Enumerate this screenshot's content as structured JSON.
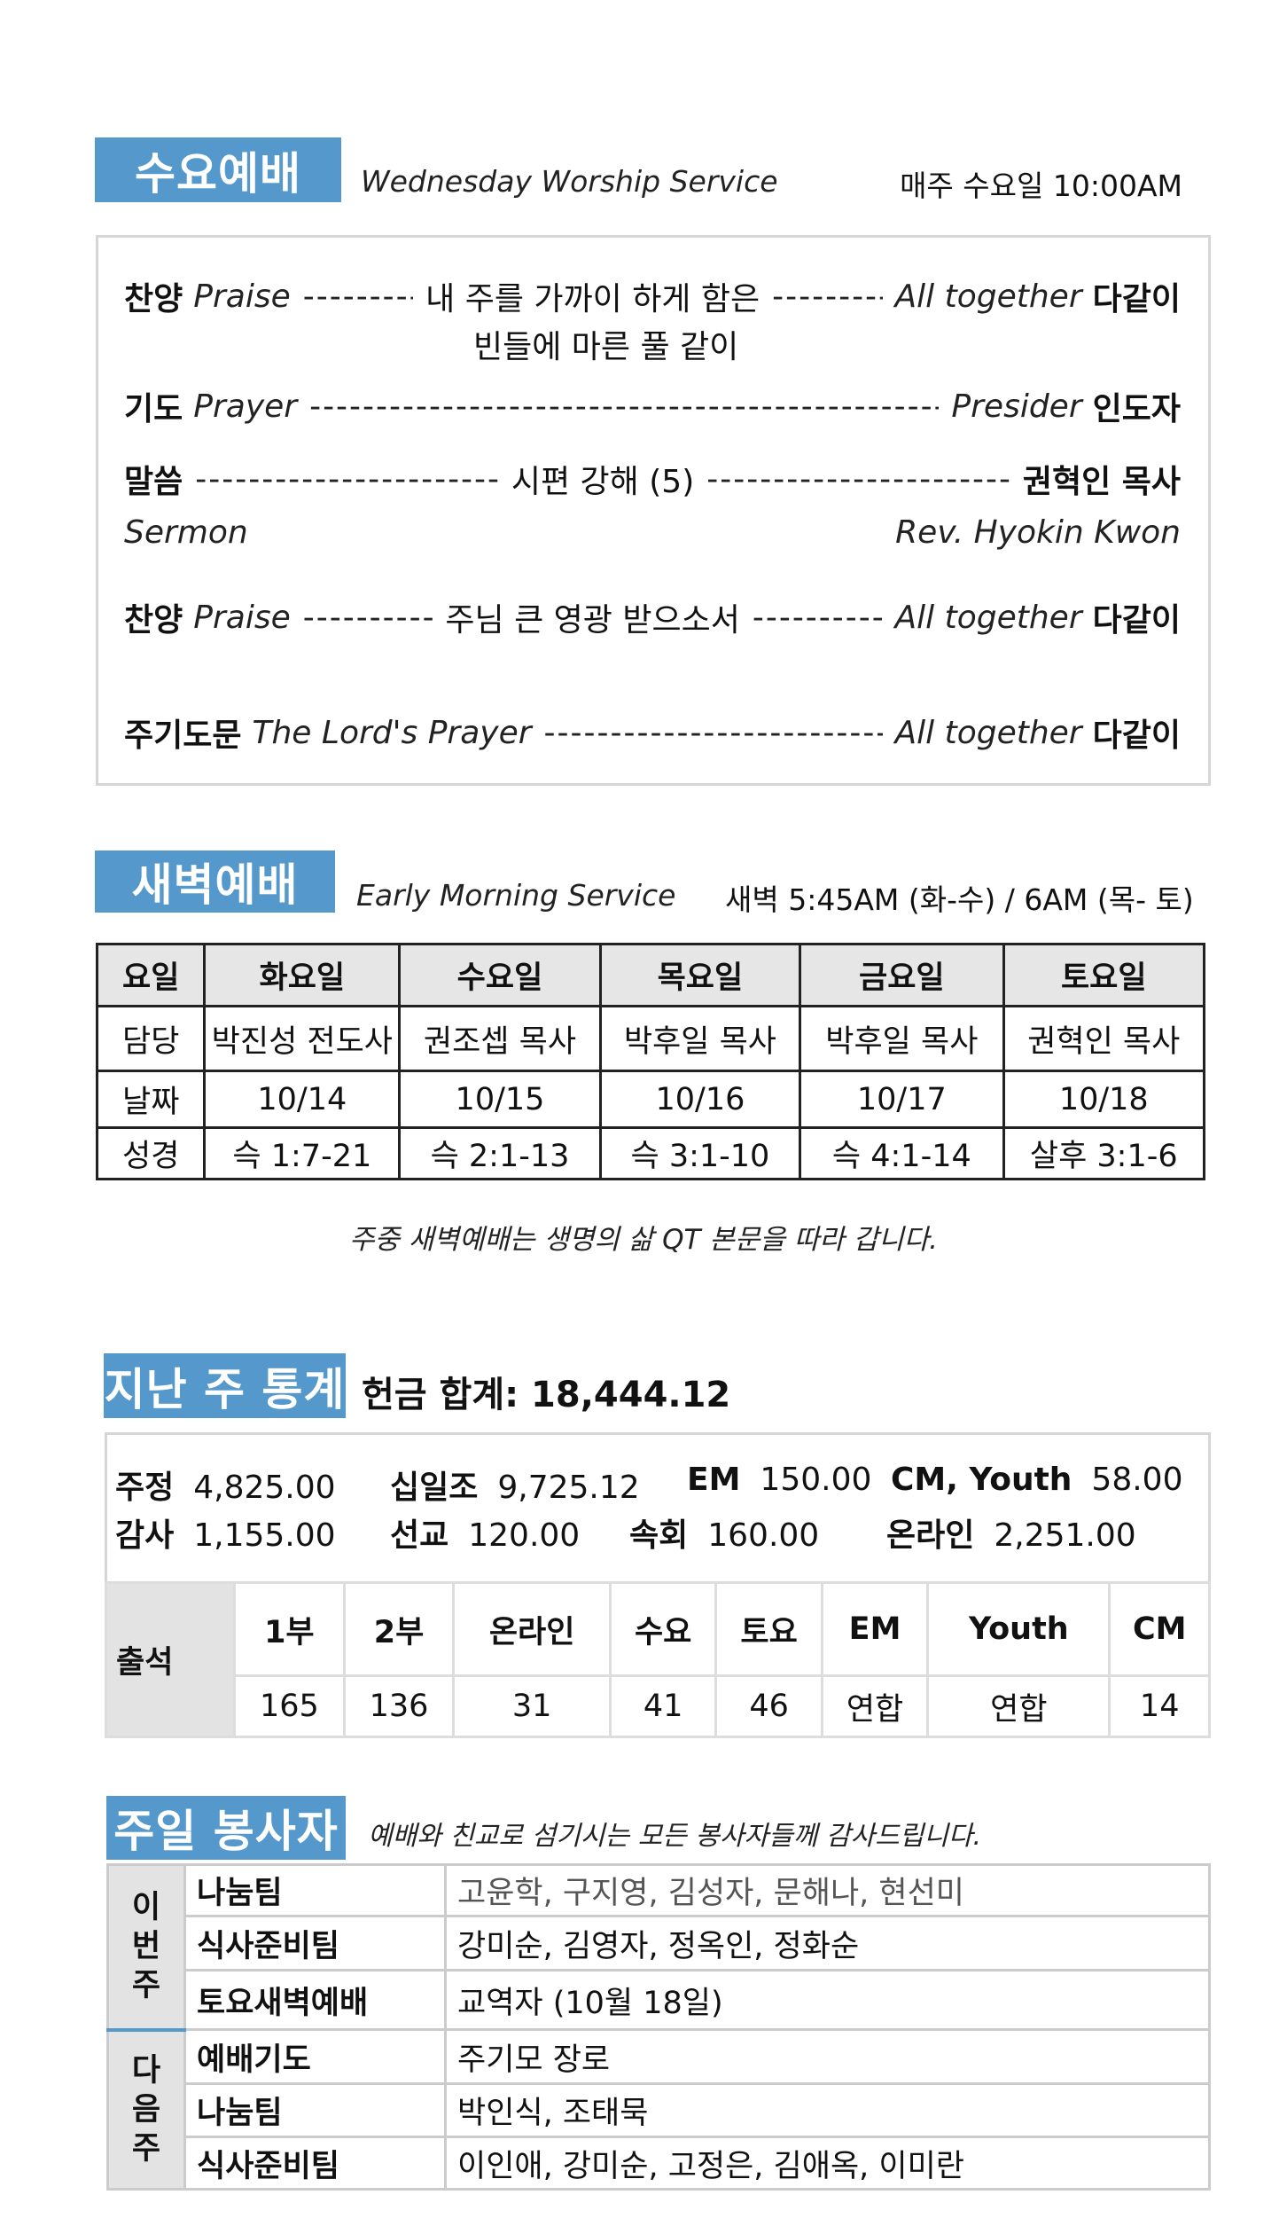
{
  "wednesday": {
    "title": "수요예배",
    "subtitle": "Wednesday Worship Service",
    "time": "매주 수요일 10:00AM",
    "items": [
      {
        "ko": "찬양",
        "en": "Praise",
        "center": "내 주를 가까이 하게 함은",
        "center2": "빈들에 마른 풀 같이",
        "right_en": "All  together",
        "right_ko": "다같이"
      },
      {
        "ko": "기도",
        "en": "Prayer",
        "right_en": "Presider",
        "right_ko": "인도자"
      },
      {
        "ko": "말씀",
        "center": "시편 강해 (5)",
        "right_ko": "권혁인 목사",
        "en_below": "Sermon",
        "right_below": "Rev. Hyokin Kwon"
      },
      {
        "ko": "찬양",
        "en": "Praise",
        "center": "주님 큰 영광 받으소서",
        "right_en": "All together",
        "right_ko": "다같이"
      },
      {
        "ko": "주기도문",
        "en": "The Lord's Prayer",
        "right_en": "All together",
        "right_ko": "다같이"
      }
    ]
  },
  "early": {
    "title": "새벽예배",
    "subtitle": "Early Morning Service",
    "time": "새벽 5:45AM (화-수) / 6AM (목- 토)",
    "headers": [
      "요일",
      "화요일",
      "수요일",
      "목요일",
      "금요일",
      "토요일"
    ],
    "rows": [
      [
        "담당",
        "박진성 전도사",
        "권조셉 목사",
        "박후일 목사",
        "박후일 목사",
        "권혁인 목사"
      ],
      [
        "날짜",
        "10/14",
        "10/15",
        "10/16",
        "10/17",
        "10/18"
      ],
      [
        "성경",
        "슥 1:7-21",
        "슥 2:1-13",
        "슥 3:1-10",
        "슥 4:1-14",
        "살후 3:1-6"
      ]
    ],
    "note": "주중 새벽예배는 생명의 삶 QT 본문을  따라 갑니다."
  },
  "stats": {
    "title": "지난 주 통계",
    "total": "헌금 합계: 18,444.12",
    "offerings": [
      [
        {
          "k": "주정",
          "v": "4,825.00"
        },
        {
          "k": "십일조",
          "v": "9,725.12"
        },
        {
          "k": "EM",
          "v": "150.00"
        },
        {
          "k": "CM, Youth",
          "v": "58.00"
        }
      ],
      [
        {
          "k": "감사",
          "v": "1,155.00"
        },
        {
          "k": "선교",
          "v": "120.00"
        },
        {
          "k": "속회",
          "v": "160.00"
        },
        {
          "k": "온라인",
          "v": "2,251.00"
        }
      ]
    ],
    "attendance_label": "출석",
    "att_headers": [
      "1부",
      "2부",
      "온라인",
      "수요",
      "토요",
      "EM",
      "Youth",
      "CM"
    ],
    "att_values": [
      "165",
      "136",
      "31",
      "41",
      "46",
      "연합",
      "연합",
      "14"
    ]
  },
  "volunteers": {
    "title": "주일 봉사자",
    "subtitle": "예배와 친교로 섬기시는 모든 봉사자들께 감사드립니다.",
    "this_week": "이\n번\n주",
    "next_week": "다\n음\n주",
    "rows": [
      {
        "role": "나눔팀",
        "names": "고윤학, 구지영, 김성자, 문해나, 현선미"
      },
      {
        "role": "식사준비팀",
        "names": "강미순, 김영자, 정옥인, 정화순"
      },
      {
        "role": "토요새벽예배",
        "names": "교역자 (10월 18일)"
      },
      {
        "role": "예배기도",
        "names": "주기모 장로"
      },
      {
        "role": "나눔팀",
        "names": "박인식, 조태묵"
      },
      {
        "role": "식사준비팀",
        "names": "이인애, 강미순, 고정은, 김애옥, 이미란"
      }
    ]
  },
  "colors": {
    "accent": "#5599cc"
  }
}
